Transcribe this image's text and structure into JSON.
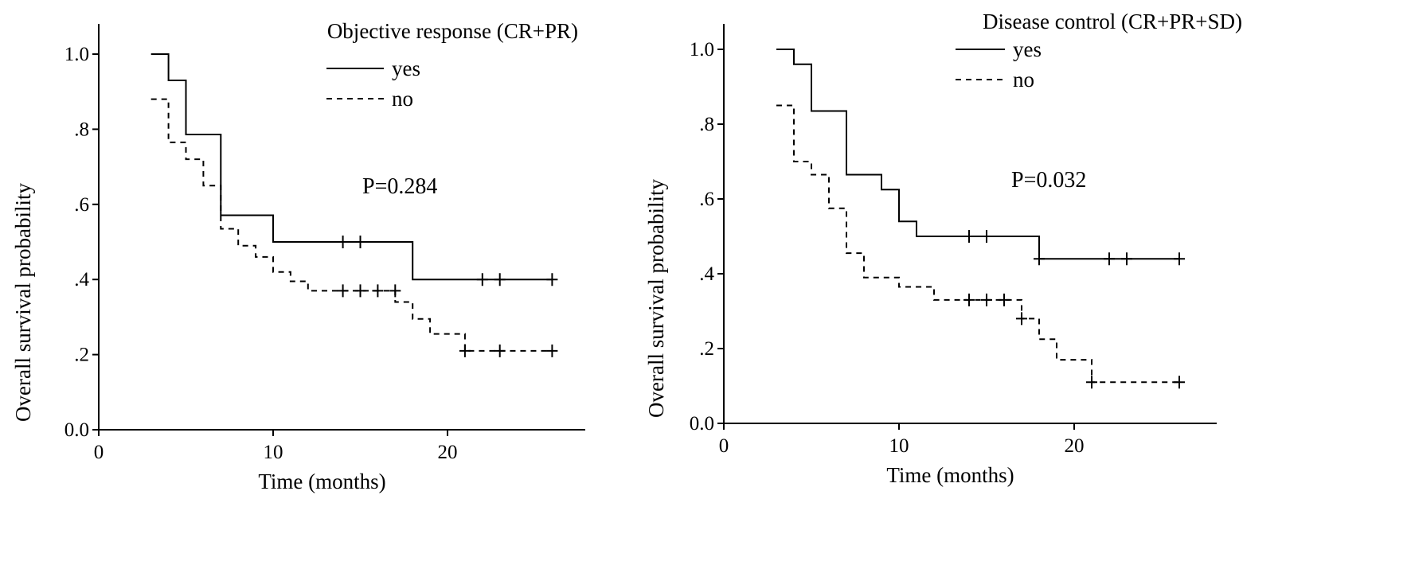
{
  "chart_data": [
    {
      "type": "line",
      "subtype": "kaplan-meier",
      "legend_title": "Objective response (CR+PR)",
      "xlabel": "Time (months)",
      "ylabel": "Overall survival probability",
      "xlim": [
        0,
        28
      ],
      "ylim": [
        0,
        1.1
      ],
      "xticks": [
        0,
        10,
        20
      ],
      "xtick_labels": [
        "0",
        "10",
        "20"
      ],
      "yticks": [
        0,
        0.2,
        0.4,
        0.6,
        0.8,
        1.0
      ],
      "ytick_labels": [
        "0.0",
        ".2",
        ".4",
        ".6",
        ".8",
        "1.0"
      ],
      "grid": false,
      "legend_position": "top-right",
      "annotation": "P=0.284",
      "series": [
        {
          "name": "yes",
          "style": "solid",
          "steps": [
            [
              3,
              1.0
            ],
            [
              4,
              0.93
            ],
            [
              5,
              0.786
            ],
            [
              7,
              0.571
            ],
            [
              10,
              0.5
            ],
            [
              18,
              0.4
            ],
            [
              26,
              0.4
            ]
          ],
          "censored": [
            [
              14,
              0.5
            ],
            [
              15,
              0.5
            ],
            [
              22,
              0.4
            ],
            [
              23,
              0.4
            ],
            [
              26,
              0.4
            ]
          ]
        },
        {
          "name": "no",
          "style": "dashed",
          "steps": [
            [
              3,
              0.88
            ],
            [
              4,
              0.765
            ],
            [
              5,
              0.72
            ],
            [
              6,
              0.65
            ],
            [
              7,
              0.535
            ],
            [
              8,
              0.49
            ],
            [
              9,
              0.46
            ],
            [
              10,
              0.42
            ],
            [
              11,
              0.395
            ],
            [
              12,
              0.37
            ],
            [
              17,
              0.34
            ],
            [
              18,
              0.295
            ],
            [
              19,
              0.255
            ],
            [
              21,
              0.21
            ],
            [
              26,
              0.21
            ]
          ],
          "censored": [
            [
              14,
              0.37
            ],
            [
              15,
              0.37
            ],
            [
              16,
              0.37
            ],
            [
              17,
              0.37
            ],
            [
              21,
              0.21
            ],
            [
              23,
              0.21
            ],
            [
              26,
              0.21
            ]
          ]
        }
      ]
    },
    {
      "type": "line",
      "subtype": "kaplan-meier",
      "legend_title": "Disease control (CR+PR+SD)",
      "xlabel": "Time (months)",
      "ylabel": "Overall survival probability",
      "xlim": [
        0,
        28
      ],
      "ylim": [
        0,
        1.1
      ],
      "xticks": [
        0,
        10,
        20
      ],
      "xtick_labels": [
        "0",
        "10",
        "20"
      ],
      "yticks": [
        0,
        0.2,
        0.4,
        0.6,
        0.8,
        1.0
      ],
      "ytick_labels": [
        "0.0",
        ".2",
        ".4",
        ".6",
        ".8",
        "1.0"
      ],
      "grid": false,
      "legend_position": "top-right",
      "annotation": "P=0.032",
      "series": [
        {
          "name": "yes",
          "style": "solid",
          "steps": [
            [
              3,
              1.0
            ],
            [
              4,
              0.96
            ],
            [
              5,
              0.835
            ],
            [
              7,
              0.665
            ],
            [
              9,
              0.625
            ],
            [
              10,
              0.54
            ],
            [
              11,
              0.5
            ],
            [
              18,
              0.44
            ],
            [
              26,
              0.44
            ]
          ],
          "censored": [
            [
              14,
              0.5
            ],
            [
              15,
              0.5
            ],
            [
              18,
              0.44
            ],
            [
              22,
              0.44
            ],
            [
              23,
              0.44
            ],
            [
              26,
              0.44
            ]
          ]
        },
        {
          "name": "no",
          "style": "dashed",
          "steps": [
            [
              3,
              0.85
            ],
            [
              4,
              0.7
            ],
            [
              5,
              0.665
            ],
            [
              6,
              0.575
            ],
            [
              7,
              0.455
            ],
            [
              8,
              0.39
            ],
            [
              10,
              0.365
            ],
            [
              12,
              0.33
            ],
            [
              17,
              0.28
            ],
            [
              18,
              0.225
            ],
            [
              19,
              0.17
            ],
            [
              21,
              0.11
            ],
            [
              26,
              0.11
            ]
          ],
          "censored": [
            [
              14,
              0.33
            ],
            [
              15,
              0.33
            ],
            [
              16,
              0.33
            ],
            [
              17,
              0.28
            ],
            [
              21,
              0.11
            ],
            [
              26,
              0.11
            ]
          ]
        }
      ]
    }
  ]
}
